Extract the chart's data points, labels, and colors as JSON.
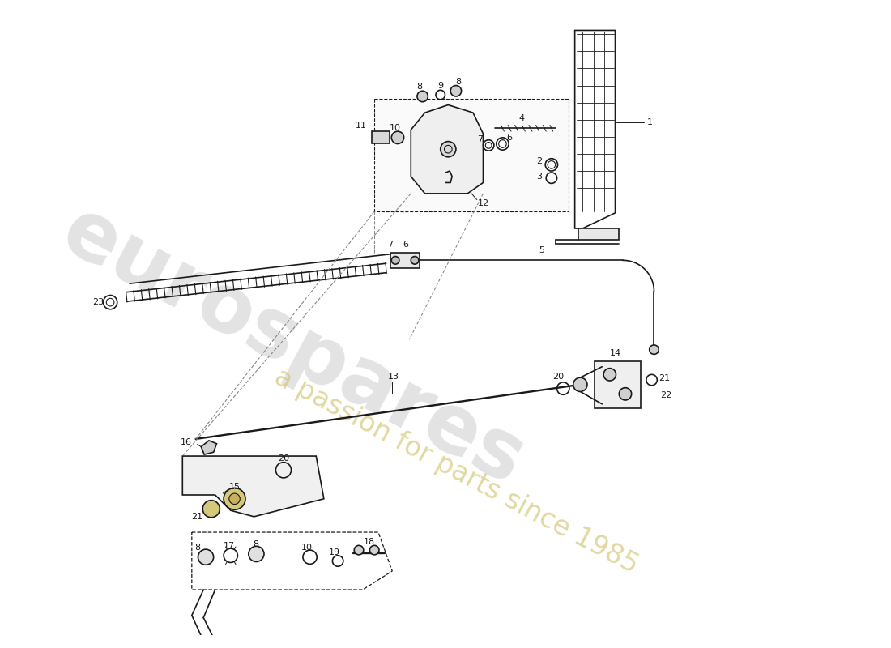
{
  "bg_color": "#ffffff",
  "lc": "#1a1a1a",
  "lw": 1.2,
  "wm1": "eurospares",
  "wm2": "a passion for parts since 1985",
  "wm1_color": "#c8c8c8",
  "wm2_color": "#d4c87a",
  "wm1_alpha": 0.5,
  "wm2_alpha": 0.7,
  "wm1_size": 72,
  "wm2_size": 24
}
